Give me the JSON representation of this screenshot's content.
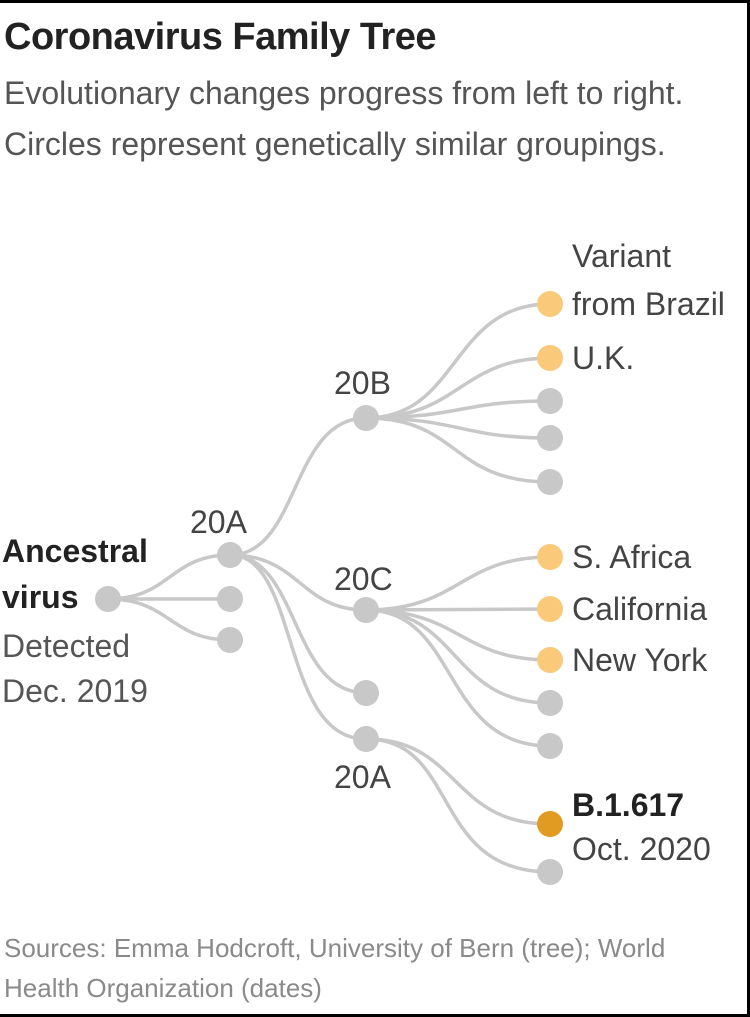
{
  "title": "Coronavirus Family Tree",
  "subtitle": "Evolutionary changes progress from left to right. Circles represent genetically similar groupings.",
  "sources": "Sources: Emma Hodcroft, University of Bern (tree); World Health Organization (dates)",
  "colors": {
    "node_gray": "#c8c8c8",
    "variant_light": "#fbc97a",
    "variant_dark": "#e19a22",
    "branch": "#c8c8c8"
  },
  "nodes": {
    "root": {
      "label_line1": "Ancestral",
      "label_line2": "virus",
      "note_line1": "Detected",
      "note_line2": "Dec. 2019"
    },
    "a20": {
      "label": "20A"
    },
    "b20": {
      "label": "20B"
    },
    "c20": {
      "label": "20C"
    },
    "a20_sub": {
      "label": "20A"
    },
    "brazil": {
      "label_line1": "Variant",
      "label_line2": "from Brazil"
    },
    "uk": {
      "label": "U.K."
    },
    "safrica": {
      "label": "S. Africa"
    },
    "california": {
      "label": "California"
    },
    "newyork": {
      "label": "New York"
    },
    "b1617": {
      "label": "B.1.617",
      "note": "Oct. 2020"
    }
  }
}
